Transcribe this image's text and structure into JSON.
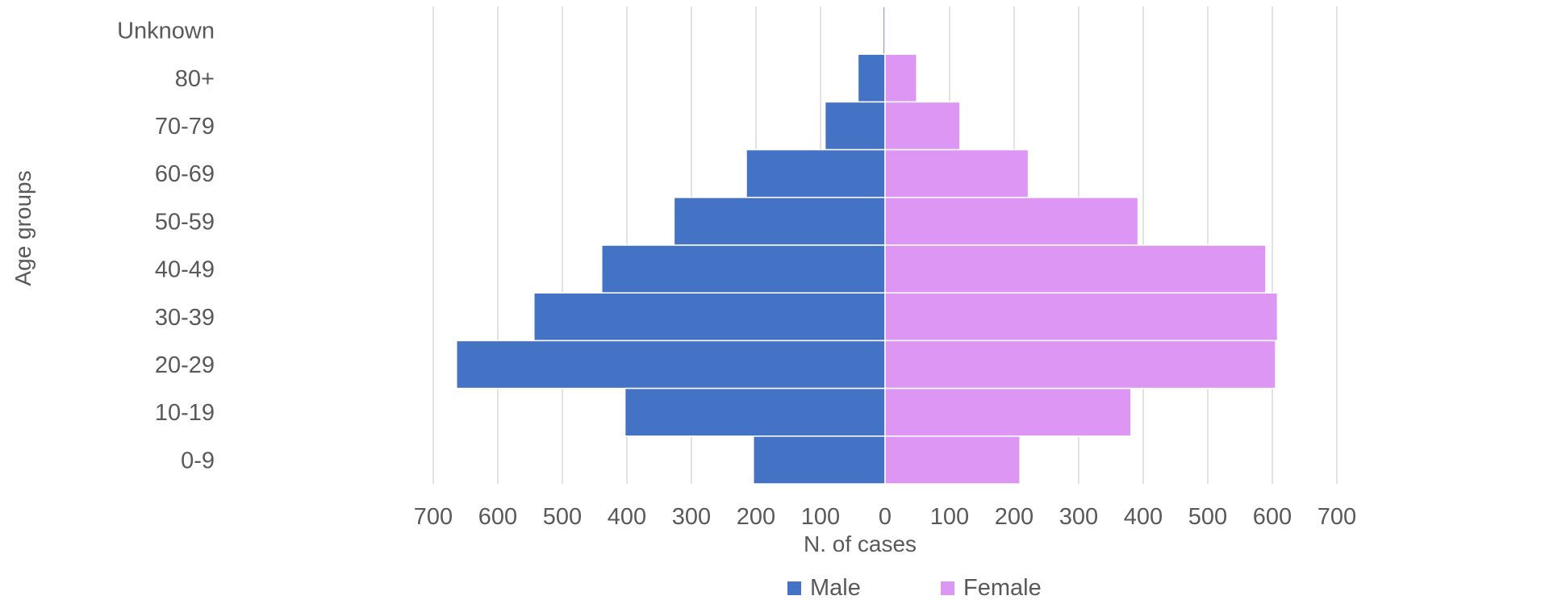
{
  "chart_data": {
    "type": "bar",
    "orientation": "horizontal-diverging",
    "categories": [
      "Unknown",
      "80+",
      "70-79",
      "60-69",
      "50-59",
      "40-49",
      "30-39",
      "20-29",
      "10-19",
      "0-9"
    ],
    "series": [
      {
        "name": "Male",
        "values": [
          3,
          42,
          93,
          215,
          327,
          439,
          544,
          664,
          403,
          204
        ],
        "color": "#4472C4",
        "side": "left"
      },
      {
        "name": "Female",
        "values": [
          1,
          49,
          116,
          222,
          392,
          590,
          608,
          605,
          381,
          209
        ],
        "color": "#DE96F4",
        "side": "right"
      }
    ],
    "xlabel": "N. of cases",
    "ylabel": "Age groups",
    "xlim": [
      -700,
      700
    ],
    "xticks": [
      -700,
      -600,
      -500,
      -400,
      -300,
      -200,
      -100,
      0,
      100,
      200,
      300,
      400,
      500,
      600,
      700
    ],
    "xtick_labels": [
      "700",
      "600",
      "500",
      "400",
      "300",
      "200",
      "100",
      "0",
      "100",
      "200",
      "300",
      "400",
      "500",
      "600",
      "700"
    ],
    "grid": "vertical",
    "grid_color": "#D9D9D9",
    "legend_position": "bottom"
  }
}
